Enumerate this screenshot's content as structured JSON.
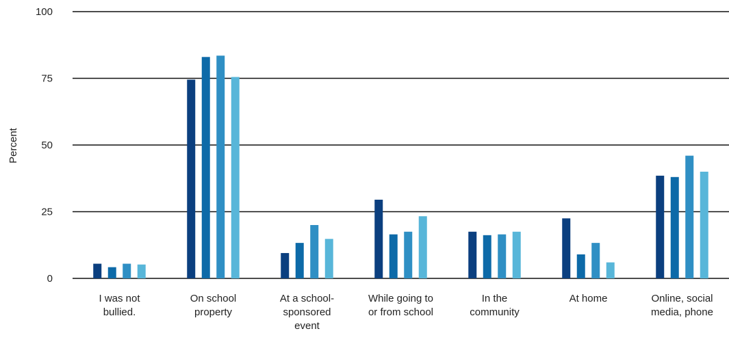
{
  "chart_data": {
    "type": "bar",
    "title": "",
    "xlabel": "",
    "ylabel": "Percent",
    "ylim": [
      0,
      100
    ],
    "yticks": [
      0,
      25,
      50,
      75,
      100
    ],
    "ytick_labels": [
      "0",
      "25",
      "50",
      "75",
      "100"
    ],
    "grid": true,
    "legend": "none",
    "categories": [
      [
        "I was not",
        "bullied."
      ],
      [
        "On school",
        "property"
      ],
      [
        "At a school-",
        "sponsored",
        "event"
      ],
      [
        "While going to",
        "or from school"
      ],
      [
        "In the",
        "community"
      ],
      [
        "At home"
      ],
      [
        "Online, social",
        "media, phone"
      ]
    ],
    "series": [
      {
        "color": "#0b3f7f",
        "values": [
          5.5,
          74.5,
          9.5,
          29.5,
          17.5,
          22.5,
          38.5
        ]
      },
      {
        "color": "#0d6aa8",
        "values": [
          4.2,
          83,
          13.3,
          16.5,
          16.2,
          9,
          38
        ]
      },
      {
        "color": "#2f8fc4",
        "values": [
          5.5,
          83.5,
          20,
          17.5,
          16.5,
          13.3,
          46
        ]
      },
      {
        "color": "#58b6d9",
        "values": [
          5.2,
          75.5,
          14.8,
          23.3,
          17.5,
          6,
          40
        ]
      }
    ]
  }
}
